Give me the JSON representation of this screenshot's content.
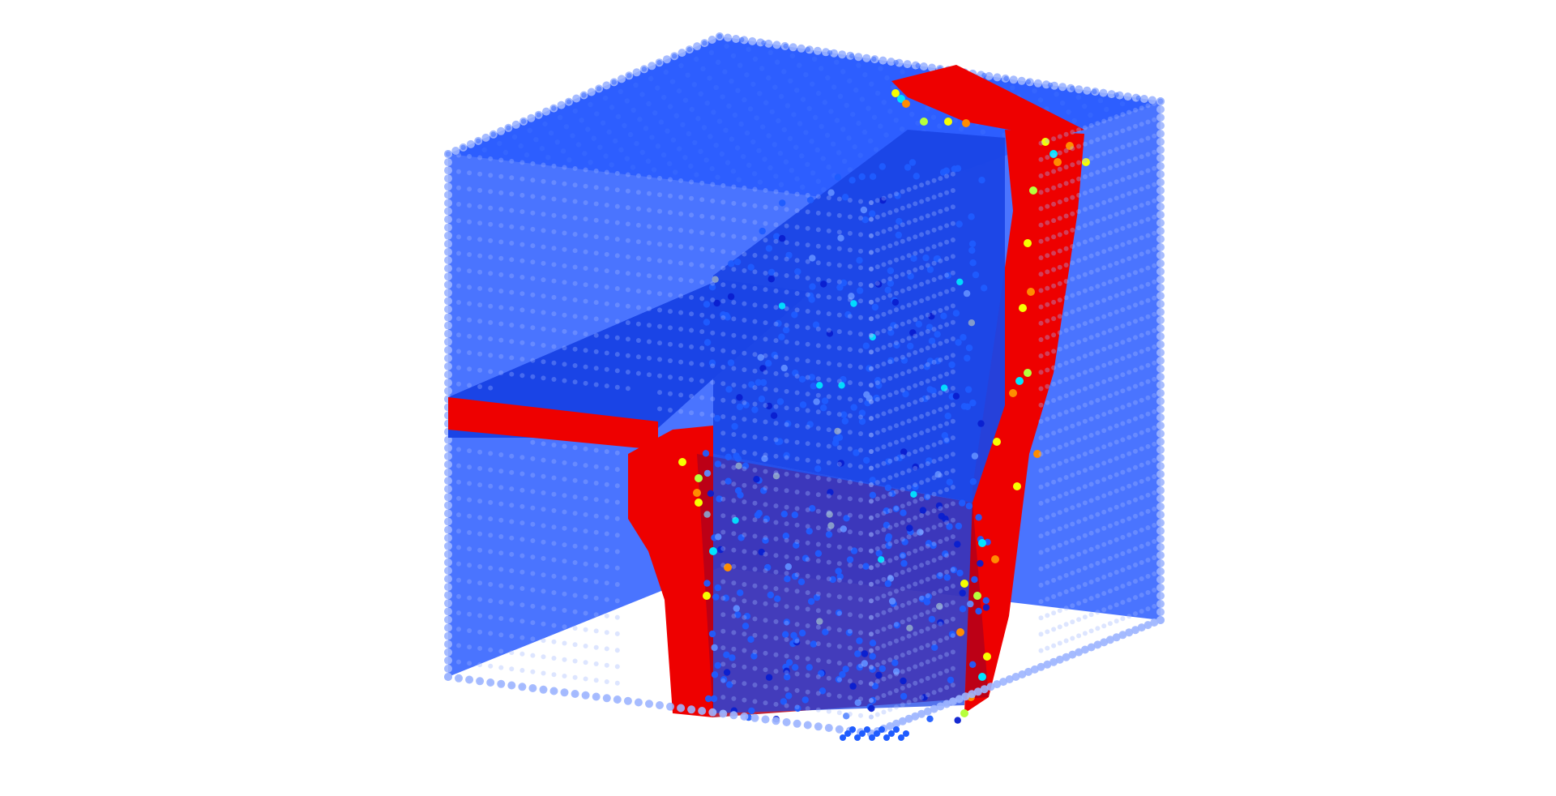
{
  "scene": {
    "background": "#ffffff",
    "colormap": [
      "#0a1fd0",
      "#1f5cff",
      "#00e5ff",
      "#f6ff00",
      "#ff8c00",
      "#ee0000"
    ],
    "colors": {
      "empty_voxel": "#2a5cff",
      "empty_voxel_edge": "#9db5ff",
      "solid_surface": "#ee0000",
      "solid_shadow": "#b3001a",
      "interior": "#1a44e6"
    }
  }
}
